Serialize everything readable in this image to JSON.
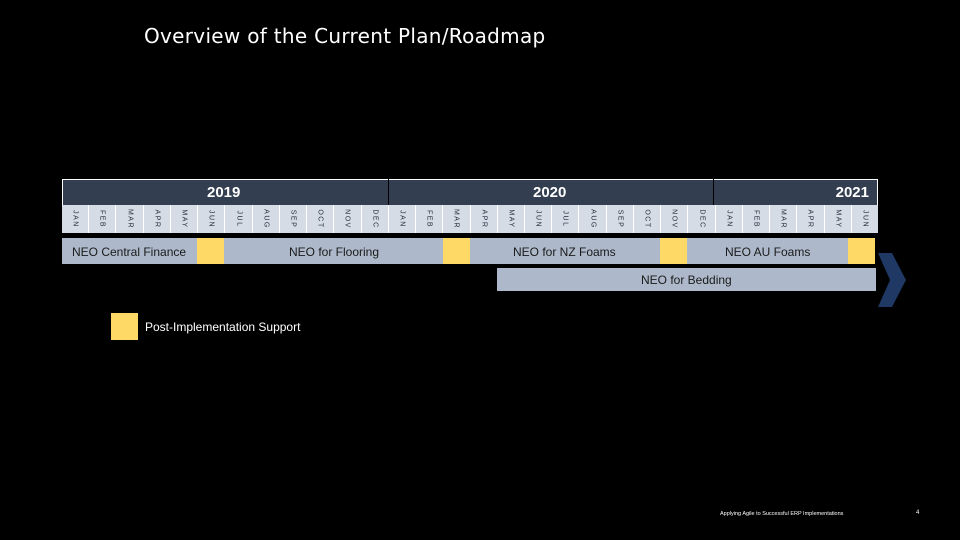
{
  "title": "Overview of the Current Plan/Roadmap",
  "years": [
    "2019",
    "2020",
    "2021"
  ],
  "months": [
    "JAN",
    "FEB",
    "MAR",
    "APR",
    "MAY",
    "JUN",
    "JUL",
    "AUG",
    "SEP",
    "OCT",
    "NOV",
    "DEC",
    "JAN",
    "FEB",
    "MAR",
    "APR",
    "MAY",
    "JUN",
    "JUL",
    "AUG",
    "SEP",
    "OCT",
    "NOV",
    "DEC",
    "JAN",
    "FEB",
    "MAR",
    "APR",
    "MAY",
    "JUN"
  ],
  "workstreams": {
    "central_finance": "NEO Central Finance",
    "flooring": "NEO for Flooring",
    "nz_foams": "NEO for NZ Foams",
    "au_foams": "NEO AU Foams",
    "bedding": "NEO for Bedding"
  },
  "legend": {
    "support": "Post-Implementation Support"
  },
  "footer": {
    "text": "Applying Agile to Successful ERP Implementations",
    "page": "4"
  },
  "colors": {
    "year_header": "#333f50",
    "month_cell": "#d6dce5",
    "bar": "#adb9ca",
    "support": "#ffd966",
    "arrow": "#1f3864",
    "background": "#000000"
  }
}
